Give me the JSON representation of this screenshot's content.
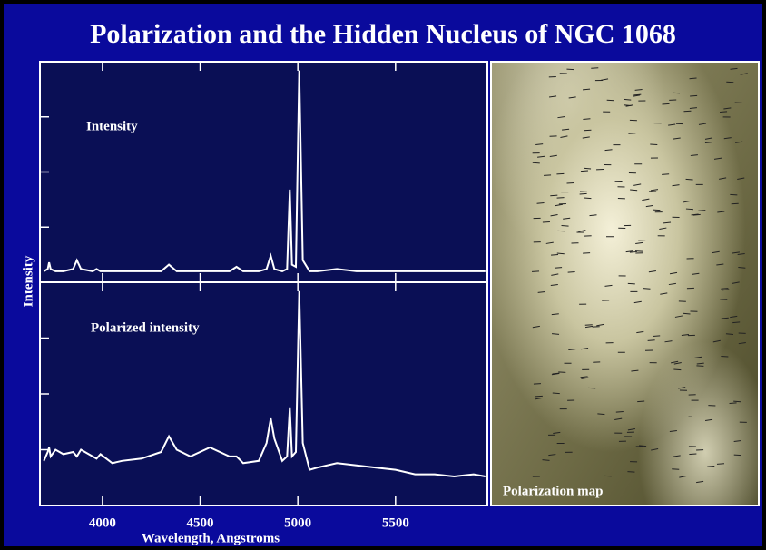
{
  "title": "Polarization and the Hidden Nucleus of NGC 1068",
  "ylabel": "Intensity",
  "image": {
    "label": "Polarization map"
  },
  "chart_data": [
    {
      "type": "line",
      "annotation": "Intensity",
      "ylim": [
        0,
        100
      ],
      "yticks": [
        25,
        50,
        75
      ],
      "x": [
        3700,
        3720,
        3727,
        3735,
        3760,
        3800,
        3850,
        3869,
        3890,
        3950,
        3970,
        3990,
        4050,
        4100,
        4200,
        4300,
        4340,
        4380,
        4450,
        4550,
        4650,
        4686,
        4720,
        4800,
        4840,
        4861,
        4880,
        4920,
        4945,
        4959,
        4970,
        4990,
        5007,
        5025,
        5060,
        5100,
        5200,
        5300,
        5400,
        5500,
        5600,
        5700,
        5800,
        5900,
        5960
      ],
      "series": [
        {
          "color": "#ffffff",
          "values": [
            5,
            6,
            9,
            6,
            5,
            5,
            6,
            10,
            6,
            5,
            6,
            5,
            5,
            5,
            5,
            5,
            8,
            5,
            5,
            5,
            5,
            7,
            5,
            5,
            6,
            12,
            6,
            5,
            6,
            42,
            8,
            7,
            96,
            10,
            5,
            5,
            6,
            5,
            5,
            5,
            5,
            5,
            5,
            5,
            5
          ]
        }
      ]
    },
    {
      "type": "line",
      "annotation": "Polarized intensity",
      "xlabel": "Wavelength, Angstroms",
      "xlim": [
        3680,
        5970
      ],
      "xticks": [
        4000,
        4500,
        5000,
        5500
      ],
      "ylim": [
        0,
        100
      ],
      "yticks": [
        25,
        50,
        75
      ],
      "x": [
        3700,
        3720,
        3727,
        3735,
        3760,
        3800,
        3850,
        3869,
        3890,
        3950,
        3970,
        3990,
        4050,
        4100,
        4200,
        4300,
        4340,
        4380,
        4450,
        4550,
        4650,
        4686,
        4720,
        4800,
        4840,
        4861,
        4880,
        4920,
        4945,
        4959,
        4970,
        4990,
        5007,
        5025,
        5060,
        5100,
        5200,
        5300,
        5400,
        5500,
        5600,
        5700,
        5800,
        5900,
        5960
      ],
      "series": [
        {
          "color": "#ffffff",
          "values": [
            20,
            24,
            26,
            22,
            25,
            23,
            24,
            22,
            25,
            22,
            21,
            23,
            19,
            20,
            21,
            24,
            31,
            25,
            22,
            26,
            22,
            22,
            19,
            20,
            28,
            39,
            30,
            20,
            22,
            44,
            22,
            24,
            96,
            28,
            16,
            17,
            19,
            18,
            17,
            16,
            14,
            14,
            13,
            14,
            13
          ]
        }
      ]
    }
  ]
}
